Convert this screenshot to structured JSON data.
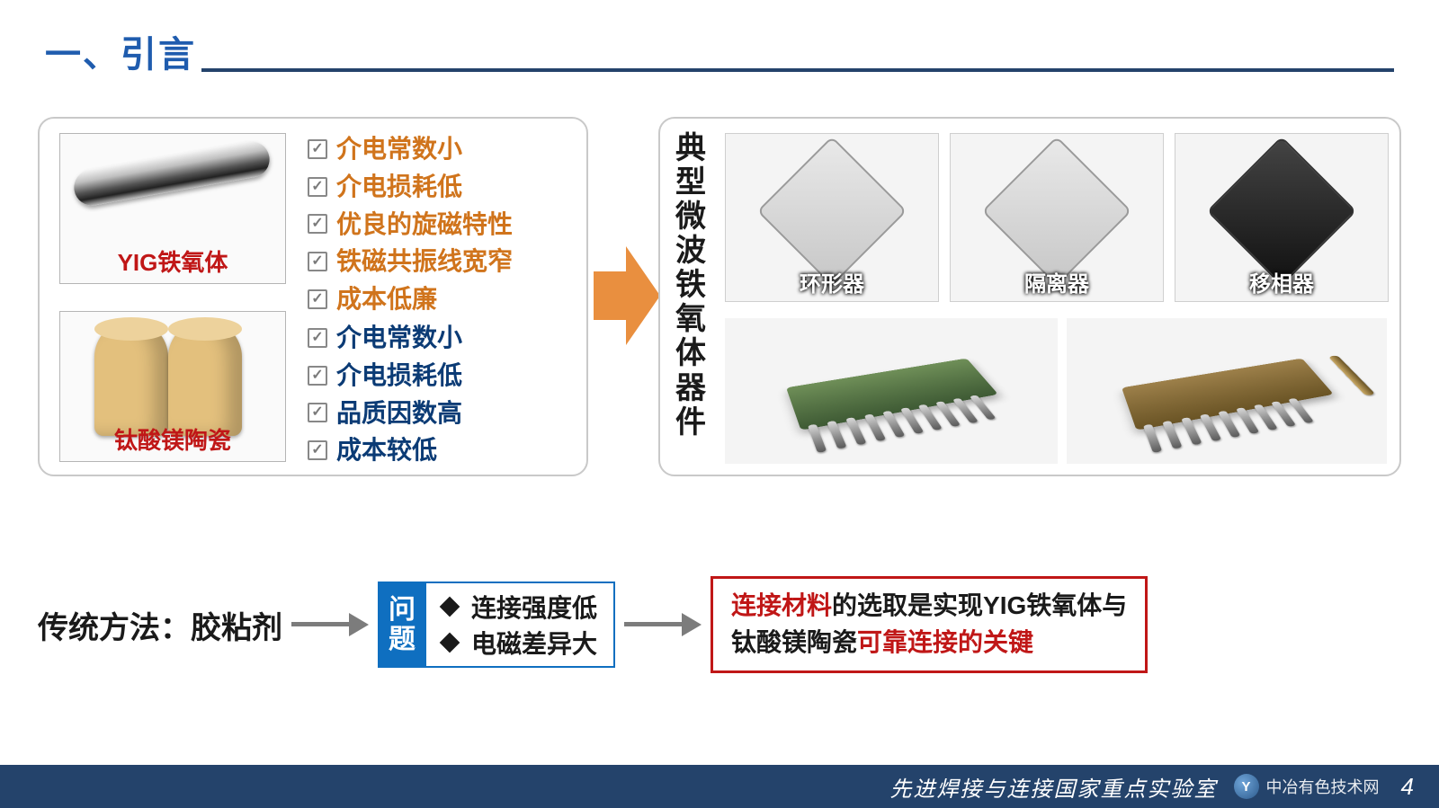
{
  "colors": {
    "title": "#1f5cae",
    "rule": "#24436b",
    "orange_text": "#d0741c",
    "navy_text": "#0b3b75",
    "arrow_orange": "#e98f3f",
    "issue_blue": "#0f6fc0",
    "conclusion_border": "#c01717",
    "conclusion_highlight": "#c01717",
    "flow_arrow": "#7c7c7c",
    "footer_bg": "#24436b",
    "panel_border": "#c9c9c9",
    "mat1_caption": "#c01717",
    "mat2_caption": "#c01717",
    "checkbox_border": "#888888",
    "check_mark": "#7a7a7a"
  },
  "title": "一、引言",
  "materials": {
    "mat1": {
      "caption": "YIG铁氧体"
    },
    "mat2": {
      "caption": "钛酸镁陶瓷"
    }
  },
  "props_top": {
    "color": "#d0741c",
    "items": [
      "介电常数小",
      "介电损耗低",
      "优良的旋磁特性",
      "铁磁共振线宽窄",
      "成本低廉"
    ]
  },
  "props_bottom": {
    "color": "#0b3b75",
    "items": [
      "介电常数小",
      "介电损耗低",
      "品质因数高",
      "成本较低"
    ]
  },
  "right_panel": {
    "heading": "典型微波铁氧体器件",
    "devices": [
      "环形器",
      "隔离器",
      "移相器"
    ]
  },
  "bottom": {
    "method": "传统方法：胶粘剂",
    "issue_tag": "问题",
    "issues": [
      "连接强度低",
      "电磁差异大"
    ],
    "conclusion_plain1": "的选取是实现YIG铁氧体与",
    "conclusion_hl1": "连接材料",
    "conclusion_plain2": "钛酸镁陶瓷",
    "conclusion_hl2": "可靠连接的关键"
  },
  "footer": {
    "lab": "先进焊接与连接国家重点实验室",
    "brand": "中冶有色技术网",
    "brand_short": "Y",
    "page": "4"
  }
}
